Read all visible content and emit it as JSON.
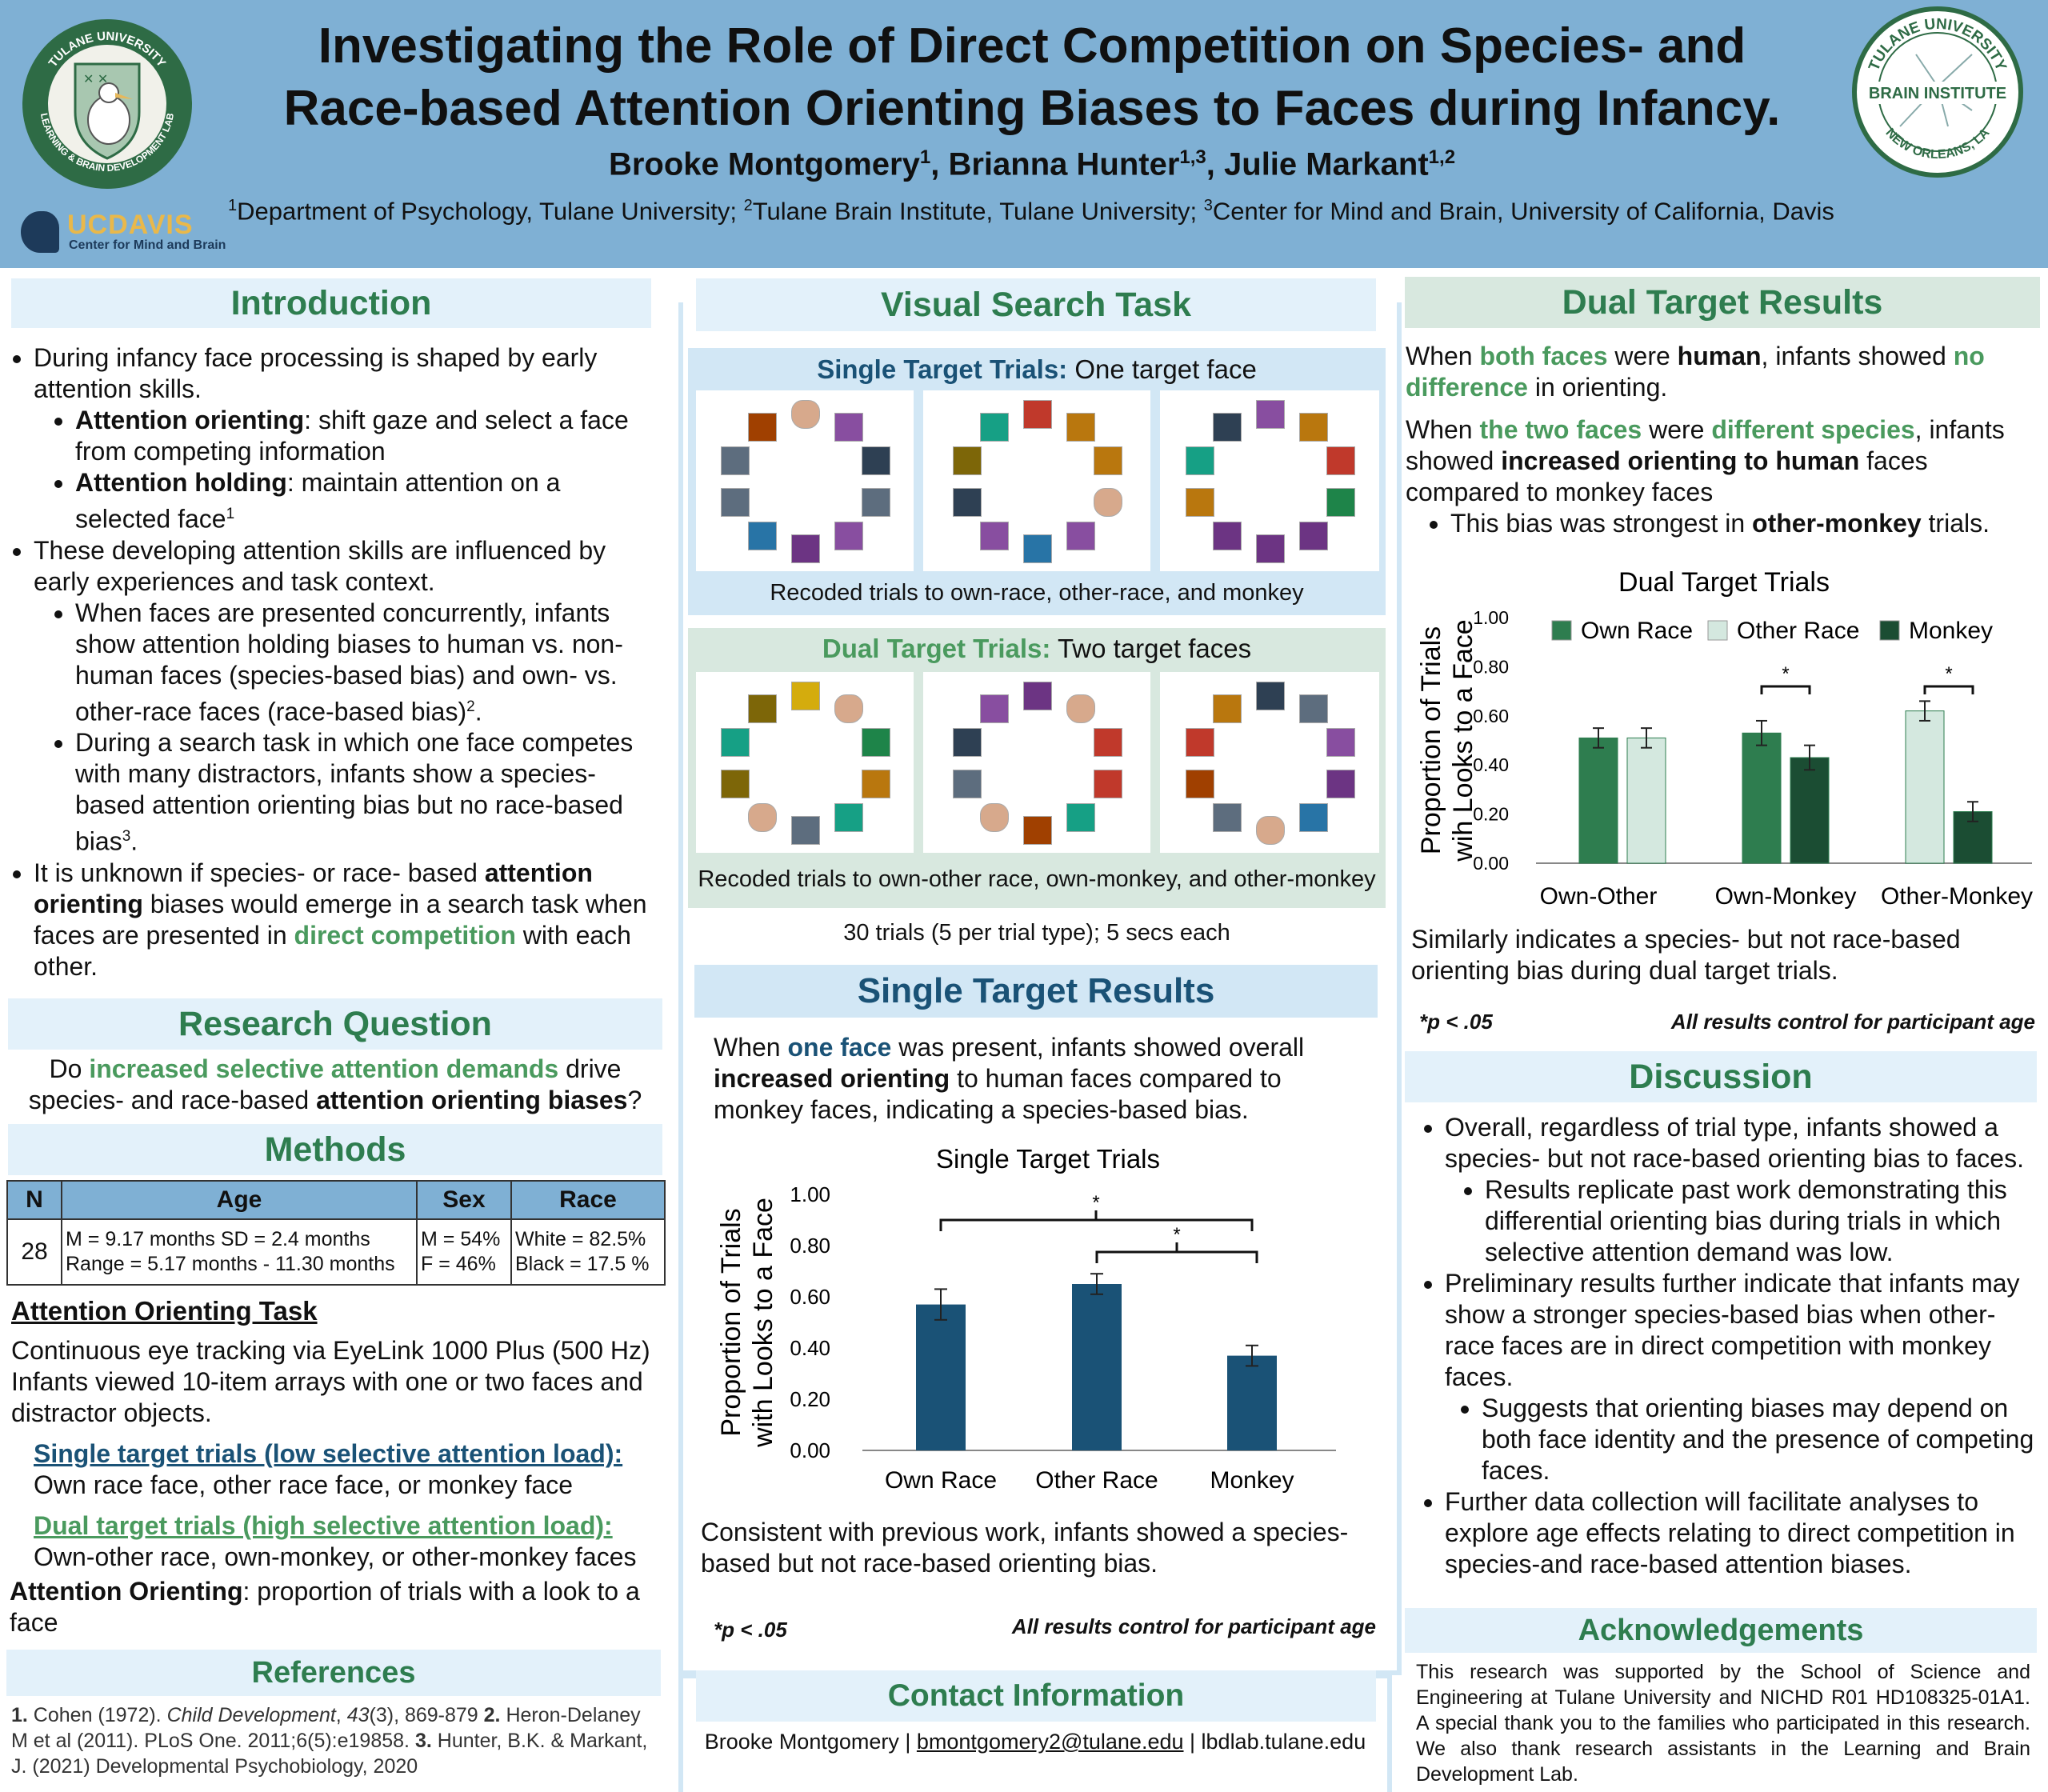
{
  "header": {
    "title_line1": "Investigating the Role of Direct Competition on Species- and",
    "title_line2": "Race-based Attention Orienting Biases to Faces during Infancy.",
    "authors": [
      {
        "name": "Brooke Montgomery",
        "sup": "1"
      },
      {
        "name": "Brianna Hunter",
        "sup": "1,3"
      },
      {
        "name": "Julie Markant",
        "sup": "1,2"
      }
    ],
    "author_sep": ", ",
    "affiliations": [
      {
        "sup": "1",
        "text": "Department of Psychology, Tulane University; "
      },
      {
        "sup": "2",
        "text": "Tulane Brain Institute, Tulane University; "
      },
      {
        "sup": "3",
        "text": "Center for Mind and Brain, University of California, Davis"
      }
    ],
    "left_logo": {
      "ring_top": "TULANE UNIVERSITY",
      "ring_bottom": "LEARNING & BRAIN DEVELOPMENT LAB"
    },
    "right_logo": {
      "ring_top": "TULANE UNIVERSITY",
      "center": "BRAIN INSTITUTE",
      "ring_bottom": "NEW ORLEANS, LA"
    },
    "ucdavis": {
      "uc": "UC",
      "davis": "DAVIS",
      "sub": "Center for Mind and Brain"
    }
  },
  "intro": {
    "heading": "Introduction",
    "b1": "During infancy face processing is shaped by early attention skills.",
    "b1a_bold": "Attention orienting",
    "b1a": ": shift gaze and select a face from competing information",
    "b1b_bold": "Attention holding",
    "b1b": ": maintain attention on a selected face",
    "b1b_sup": "1",
    "b2": "These developing attention skills are influenced by early experiences and task context.",
    "b2a": "When faces are presented concurrently, infants show attention holding biases to human vs. non-human faces (species-based bias) and own- vs. other-race faces (race-based bias)",
    "b2a_sup": "2",
    "b2a_end": ".",
    "b2b": "During a search task in which one face competes with many distractors, infants show a species-based attention orienting bias but no race-based bias",
    "b2b_sup": "3",
    "b2b_end": ".",
    "b3_pre": "It is unknown if species- or race- based ",
    "b3_bold1": "attention orienting",
    "b3_mid": " biases would emerge in a search task when faces are presented in ",
    "b3_green": "direct competition",
    "b3_end": " with each other."
  },
  "research": {
    "heading": "Research Question",
    "pre": "Do ",
    "green": "increased selective attention demands",
    "mid": " drive species- and race-based ",
    "bold": "attention orienting biases",
    "end": "?"
  },
  "methods": {
    "heading": "Methods",
    "table_headers": [
      "N",
      "Age",
      "Sex",
      "Race"
    ],
    "n": "28",
    "age_line1": "M = 9.17 months    SD = 2.4 months",
    "age_line2": "Range = 5.17 months - 11.30 months",
    "sex_line1": "M = 54%",
    "sex_line2": "F = 46%",
    "race_line1": "White = 82.5%",
    "race_line2": "Black = 17.5 %",
    "task_heading": "Attention Orienting Task",
    "task_l1": "Continuous eye tracking via EyeLink 1000 Plus (500 Hz)",
    "task_l2": "Infants viewed 10-item arrays with one or two faces and distractor objects.",
    "single_head": "Single target trials (low selective attention load):",
    "single_desc": "Own race face, other race face, or monkey face",
    "dual_head": "Dual target trials (high selective attention load):",
    "dual_desc": "Own-other race, own-monkey, or other-monkey faces",
    "ao_bold": "Attention Orienting",
    "ao_text": ": proportion of trials with a look to a face"
  },
  "references": {
    "heading": "References",
    "r1_num": "1.",
    "r1_a": " Cohen (1972). ",
    "r1_journal": "Child Development",
    "r1_b": ", ",
    "r1_vol": "43",
    "r1_c": "(3), 869-879 ",
    "r2_num": "2.",
    "r2": " Heron-Delaney M et al (2011). PLoS One. 2011;6(5):e19858. ",
    "r3_num": "3.",
    "r3": " Hunter, B.K. & Markant, J. (2021) Developmental Psychobiology, 2020"
  },
  "visual_search": {
    "heading": "Visual Search Task",
    "single_label": "Single Target Trials:",
    "single_sub": "One target face",
    "single_caption": "Recoded trials to own-race, other-race, and monkey",
    "dual_label": "Dual Target Trials:",
    "dual_sub": "Two target faces",
    "dual_caption": "Recoded trials to own-other race, own-monkey, and other-monkey",
    "trials_note": "30 trials (5 per trial type); 5 secs each"
  },
  "single_results": {
    "heading": "Single Target Results",
    "pre": "When ",
    "blue": "one face",
    "mid": " was present, infants showed overall ",
    "bold": "increased orienting",
    "end": " to human faces compared to monkey faces, indicating a species-based bias.",
    "conclusion": "Consistent with previous work, infants showed a species-based but not race-based orienting bias.",
    "pnote": "*p < .05",
    "control_note": "All results control for participant age"
  },
  "chart_data": [
    {
      "type": "bar",
      "title": "Single Target Trials",
      "ylabel": "Proportion of Trials with Looks to a Face",
      "categories": [
        "Own Race",
        "Other Race",
        "Monkey"
      ],
      "values": [
        0.57,
        0.65,
        0.37
      ],
      "errors": [
        0.06,
        0.04,
        0.04
      ],
      "ylim": [
        0,
        1.0
      ],
      "yticks": [
        "0.00",
        "0.20",
        "0.40",
        "0.60",
        "0.80",
        "1.00"
      ],
      "significance": [
        "*",
        "*"
      ],
      "color": "#1a5276"
    },
    {
      "type": "bar",
      "title": "Dual Target Trials",
      "ylabel": "Proportion of Trials wih Looks to a Face",
      "categories": [
        "Own-Other",
        "Own-Monkey",
        "Other-Monkey"
      ],
      "series": [
        {
          "name": "Own Race",
          "values": [
            0.51,
            0.53,
            null
          ],
          "errors": [
            0.04,
            0.05,
            null
          ],
          "color": "#2e7d4f"
        },
        {
          "name": "Other Race",
          "values": [
            0.51,
            null,
            0.62
          ],
          "errors": [
            0.04,
            null,
            0.04
          ],
          "color": "#d4e8df"
        },
        {
          "name": "Monkey",
          "values": [
            null,
            0.43,
            0.21
          ],
          "errors": [
            null,
            0.05,
            0.04
          ],
          "color": "#1b4d33"
        }
      ],
      "ylim": [
        0,
        1.0
      ],
      "yticks": [
        "0.00",
        "0.20",
        "0.40",
        "0.60",
        "0.80",
        "1.00"
      ],
      "significance": [
        "*",
        "*"
      ],
      "legend": "top"
    }
  ],
  "dual_results": {
    "heading": "Dual Target Results",
    "p1_pre": "When ",
    "p1_green1": "both faces",
    "p1_mid": " were ",
    "p1_bold": "human",
    "p1_mid2": ", infants showed ",
    "p1_green2": "no difference",
    "p1_end": " in orienting.",
    "p2_pre": "When ",
    "p2_green1": "the two faces",
    "p2_mid": " were ",
    "p2_green2": "different species",
    "p2_mid2": ", infants showed ",
    "p2_bold": "increased orienting to human",
    "p2_end": " faces compared to monkey faces",
    "p2_bullet_pre": "This bias was strongest in ",
    "p2_bullet_bold": "other-monkey",
    "p2_bullet_end": " trials.",
    "conclusion": "Similarly indicates a species- but not race-based orienting bias during dual target trials.",
    "pnote": "*p < .05",
    "control_note": "All results control for participant age"
  },
  "discussion": {
    "heading": "Discussion",
    "b1": "Overall, regardless of trial type, infants showed a species- but not race-based orienting bias to faces.",
    "b1a": "Results replicate past work demonstrating this differential orienting bias during trials in which selective attention demand was low.",
    "b2": "Preliminary results further indicate that infants may show a stronger species-based bias when other-race faces are in direct competition with monkey faces.",
    "b2a": "Suggests that orienting biases may depend on both face identity and the presence of competing faces.",
    "b3": "Further data collection will facilitate analyses to explore age effects relating to direct competition in species-and race-based attention biases."
  },
  "acknowledgements": {
    "heading": "Acknowledgements",
    "text": "This research was supported by the School of Science and Engineering at Tulane University and NICHD R01 HD108325-01A1. A special thank you to the families who participated in this research. We also thank research assistants in the Learning and Brain Development Lab."
  },
  "contact": {
    "heading": "Contact Information",
    "name": "Brooke Montgomery | ",
    "email": "bmontgomery2@tulane.edu",
    "site": " | lbdlab.tulane.edu"
  },
  "colors": {
    "header_bg": "#7fb0d4",
    "green_heading": "#2e7d4f",
    "blue_heading": "#1a5276",
    "accent_green": "#4a9a5e"
  }
}
